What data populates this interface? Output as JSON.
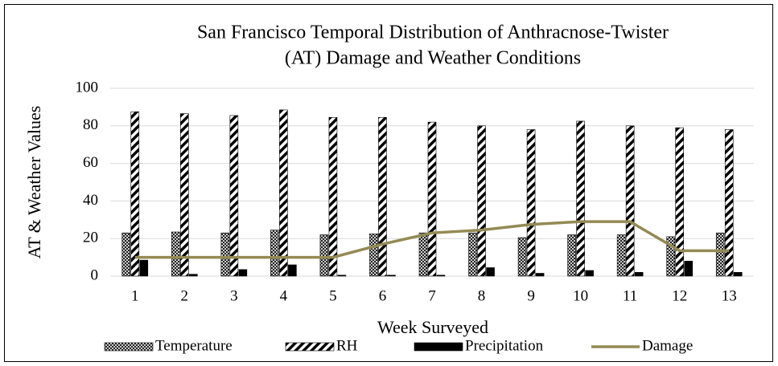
{
  "chart_data": {
    "type": "bar",
    "title": [
      "San Francisco Temporal Distribution of Anthracnose-Twister",
      "(AT) Damage and Weather Conditions"
    ],
    "x_label": "Week Surveyed",
    "y_label": "AT & Weather Values",
    "categories": [
      "1",
      "2",
      "3",
      "4",
      "5",
      "6",
      "7",
      "8",
      "9",
      "10",
      "11",
      "12",
      "13"
    ],
    "series": [
      {
        "name": "Temperature",
        "type": "bar",
        "pattern": "crosshatch",
        "color": "#000000",
        "values": [
          23,
          23.5,
          23,
          24.5,
          22,
          22.5,
          23,
          23,
          20.5,
          22,
          22,
          21,
          23
        ]
      },
      {
        "name": "RH",
        "type": "bar",
        "pattern": "diagonal",
        "color": "#000000",
        "values": [
          87.5,
          86.5,
          85.5,
          88.5,
          84.5,
          84.5,
          82,
          80,
          78,
          82.5,
          80,
          79,
          78
        ]
      },
      {
        "name": "Precipitation",
        "type": "bar",
        "pattern": "solid",
        "color": "#000000",
        "values": [
          8.5,
          1,
          3.5,
          6,
          0.5,
          0.5,
          0.5,
          4.5,
          1.5,
          3,
          2,
          8,
          2
        ]
      },
      {
        "name": "Damage",
        "type": "line",
        "color": "#948a54",
        "values": [
          10,
          10,
          10,
          10,
          10,
          17,
          23,
          24.5,
          27.5,
          29,
          29,
          13.5,
          13.5
        ]
      }
    ],
    "ylim": [
      0,
      100
    ],
    "yticks": [
      0,
      20,
      40,
      60,
      80,
      100
    ],
    "grid": true,
    "legend": "bottom"
  }
}
